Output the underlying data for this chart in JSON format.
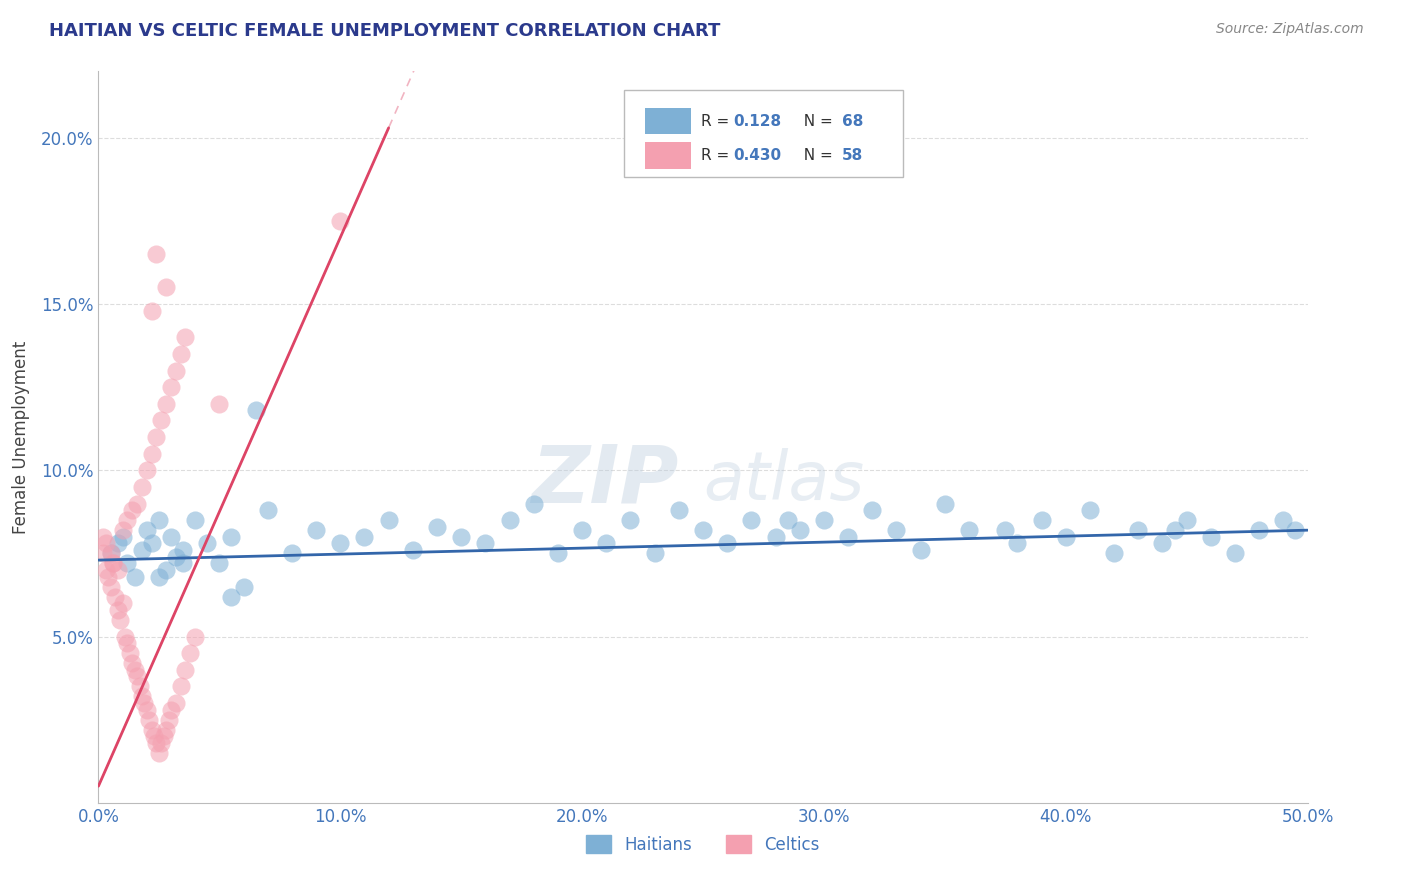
{
  "title": "HAITIAN VS CELTIC FEMALE UNEMPLOYMENT CORRELATION CHART",
  "source_text": "Source: ZipAtlas.com",
  "ylabel": "Female Unemployment",
  "watermark_zip": "ZIP",
  "watermark_atlas": "atlas",
  "xmin": 0.0,
  "xmax": 0.5,
  "ymin": 0.0,
  "ymax": 0.22,
  "yticks": [
    0.05,
    0.1,
    0.15,
    0.2
  ],
  "ytick_labels": [
    "5.0%",
    "10.0%",
    "15.0%",
    "20.0%"
  ],
  "xticks": [
    0.0,
    0.1,
    0.2,
    0.3,
    0.4,
    0.5
  ],
  "xtick_labels": [
    "0.0%",
    "10.0%",
    "20.0%",
    "30.0%",
    "40.0%",
    "50.0%"
  ],
  "legend_label1": "Haitians",
  "legend_label2": "Celtics",
  "r_haitians": "0.128",
  "n_haitians": "68",
  "r_celtics": "0.430",
  "n_celtics": "58",
  "blue_color": "#7EB0D5",
  "pink_color": "#F4A0B0",
  "blue_line_color": "#3366AA",
  "pink_line_color": "#DD4466",
  "title_color": "#2B3A8C",
  "axis_label_color": "#444444",
  "tick_color": "#4477BB",
  "legend_r_color": "#3366AA",
  "legend_n_color": "#3366AA",
  "haitians_x": [
    0.005,
    0.008,
    0.01,
    0.012,
    0.015,
    0.018,
    0.02,
    0.022,
    0.025,
    0.028,
    0.03,
    0.032,
    0.035,
    0.04,
    0.045,
    0.05,
    0.055,
    0.06,
    0.07,
    0.08,
    0.09,
    0.1,
    0.11,
    0.12,
    0.13,
    0.14,
    0.15,
    0.16,
    0.17,
    0.18,
    0.19,
    0.2,
    0.21,
    0.22,
    0.23,
    0.24,
    0.25,
    0.26,
    0.27,
    0.28,
    0.29,
    0.3,
    0.31,
    0.32,
    0.33,
    0.34,
    0.35,
    0.36,
    0.38,
    0.39,
    0.4,
    0.41,
    0.42,
    0.43,
    0.44,
    0.45,
    0.46,
    0.47,
    0.48,
    0.49,
    0.025,
    0.035,
    0.055,
    0.065,
    0.285,
    0.375,
    0.445,
    0.495
  ],
  "haitians_y": [
    0.075,
    0.078,
    0.08,
    0.072,
    0.068,
    0.076,
    0.082,
    0.078,
    0.085,
    0.07,
    0.08,
    0.074,
    0.076,
    0.085,
    0.078,
    0.072,
    0.08,
    0.065,
    0.088,
    0.075,
    0.082,
    0.078,
    0.08,
    0.085,
    0.076,
    0.083,
    0.08,
    0.078,
    0.085,
    0.09,
    0.075,
    0.082,
    0.078,
    0.085,
    0.075,
    0.088,
    0.082,
    0.078,
    0.085,
    0.08,
    0.082,
    0.085,
    0.08,
    0.088,
    0.082,
    0.076,
    0.09,
    0.082,
    0.078,
    0.085,
    0.08,
    0.088,
    0.075,
    0.082,
    0.078,
    0.085,
    0.08,
    0.075,
    0.082,
    0.085,
    0.068,
    0.072,
    0.062,
    0.118,
    0.085,
    0.082,
    0.082,
    0.082
  ],
  "celtics_x": [
    0.002,
    0.003,
    0.004,
    0.005,
    0.006,
    0.007,
    0.008,
    0.009,
    0.01,
    0.011,
    0.012,
    0.013,
    0.014,
    0.015,
    0.016,
    0.017,
    0.018,
    0.019,
    0.02,
    0.021,
    0.022,
    0.023,
    0.024,
    0.025,
    0.026,
    0.027,
    0.028,
    0.029,
    0.03,
    0.032,
    0.034,
    0.036,
    0.038,
    0.04,
    0.002,
    0.003,
    0.005,
    0.006,
    0.008,
    0.01,
    0.012,
    0.014,
    0.016,
    0.018,
    0.02,
    0.022,
    0.024,
    0.026,
    0.028,
    0.03,
    0.032,
    0.034,
    0.036,
    0.022,
    0.028,
    0.024,
    0.1,
    0.05
  ],
  "celtics_y": [
    0.075,
    0.07,
    0.068,
    0.065,
    0.072,
    0.062,
    0.058,
    0.055,
    0.06,
    0.05,
    0.048,
    0.045,
    0.042,
    0.04,
    0.038,
    0.035,
    0.032,
    0.03,
    0.028,
    0.025,
    0.022,
    0.02,
    0.018,
    0.015,
    0.018,
    0.02,
    0.022,
    0.025,
    0.028,
    0.03,
    0.035,
    0.04,
    0.045,
    0.05,
    0.08,
    0.078,
    0.075,
    0.072,
    0.07,
    0.082,
    0.085,
    0.088,
    0.09,
    0.095,
    0.1,
    0.105,
    0.11,
    0.115,
    0.12,
    0.125,
    0.13,
    0.135,
    0.14,
    0.148,
    0.155,
    0.165,
    0.175,
    0.12
  ],
  "celtic_trend_x": [
    0.0,
    0.12
  ],
  "celtic_trend_y_start": 0.005,
  "celtic_trend_slope": 1.65,
  "haitian_trend_x": [
    0.0,
    0.5
  ],
  "haitian_trend_y_start": 0.073,
  "haitian_trend_slope": 0.018
}
